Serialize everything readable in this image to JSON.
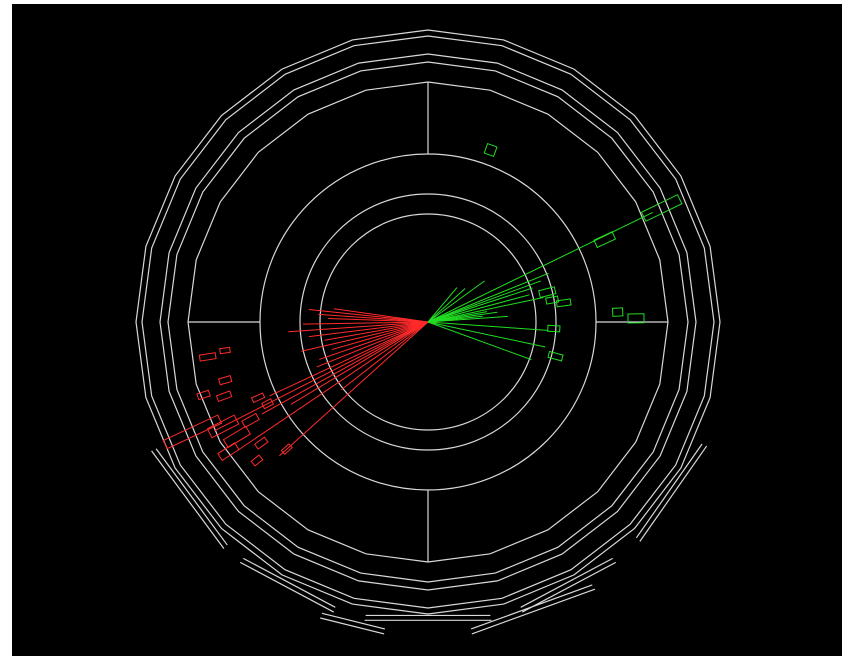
{
  "event_display": {
    "background_color": "#000000",
    "frame_color": "#ffffff",
    "detector_color": "#d8d8d8",
    "jet_a_color": "#ff2a2a",
    "jet_b_color": "#22dd22",
    "detector_icon": "detector-cross-section-icon"
  }
}
